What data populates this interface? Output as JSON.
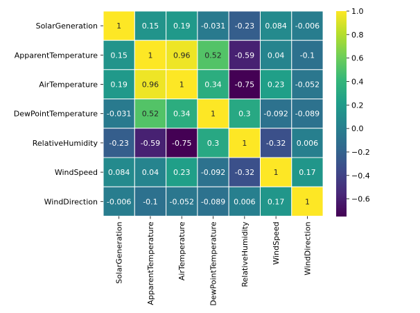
{
  "chart_data": {
    "type": "heatmap",
    "title": "",
    "row_labels": [
      "SolarGeneration",
      "ApparentTemperature",
      "AirTemperature",
      "DewPointTemperature",
      "RelativeHumidity",
      "WindSpeed",
      "WindDirection"
    ],
    "col_labels": [
      "SolarGeneration",
      "ApparentTemperature",
      "AirTemperature",
      "DewPointTemperature",
      "RelativeHumidity",
      "WindSpeed",
      "WindDirection"
    ],
    "values": [
      [
        1,
        0.15,
        0.19,
        -0.031,
        -0.23,
        0.084,
        -0.006
      ],
      [
        0.15,
        1,
        0.96,
        0.52,
        -0.59,
        0.04,
        -0.1
      ],
      [
        0.19,
        0.96,
        1,
        0.34,
        -0.75,
        0.23,
        -0.052
      ],
      [
        -0.031,
        0.52,
        0.34,
        1,
        0.3,
        -0.092,
        -0.089
      ],
      [
        -0.23,
        -0.59,
        -0.75,
        0.3,
        1,
        -0.32,
        0.006
      ],
      [
        0.084,
        0.04,
        0.23,
        -0.092,
        -0.32,
        1,
        0.17
      ],
      [
        -0.006,
        -0.1,
        -0.052,
        -0.089,
        0.006,
        0.17,
        1
      ]
    ],
    "colormap": "viridis",
    "vmin": -0.75,
    "vmax": 1.0,
    "colorbar_ticks": [
      1.0,
      0.8,
      0.6,
      0.4,
      0.2,
      0.0,
      -0.2,
      -0.4,
      -0.6
    ],
    "colorbar_tick_labels": [
      "1.0",
      "0.8",
      "0.6",
      "0.4",
      "0.2",
      "0.0",
      "−0.2",
      "−0.4",
      "−0.6"
    ],
    "cell_border_color": "#ffffff"
  }
}
